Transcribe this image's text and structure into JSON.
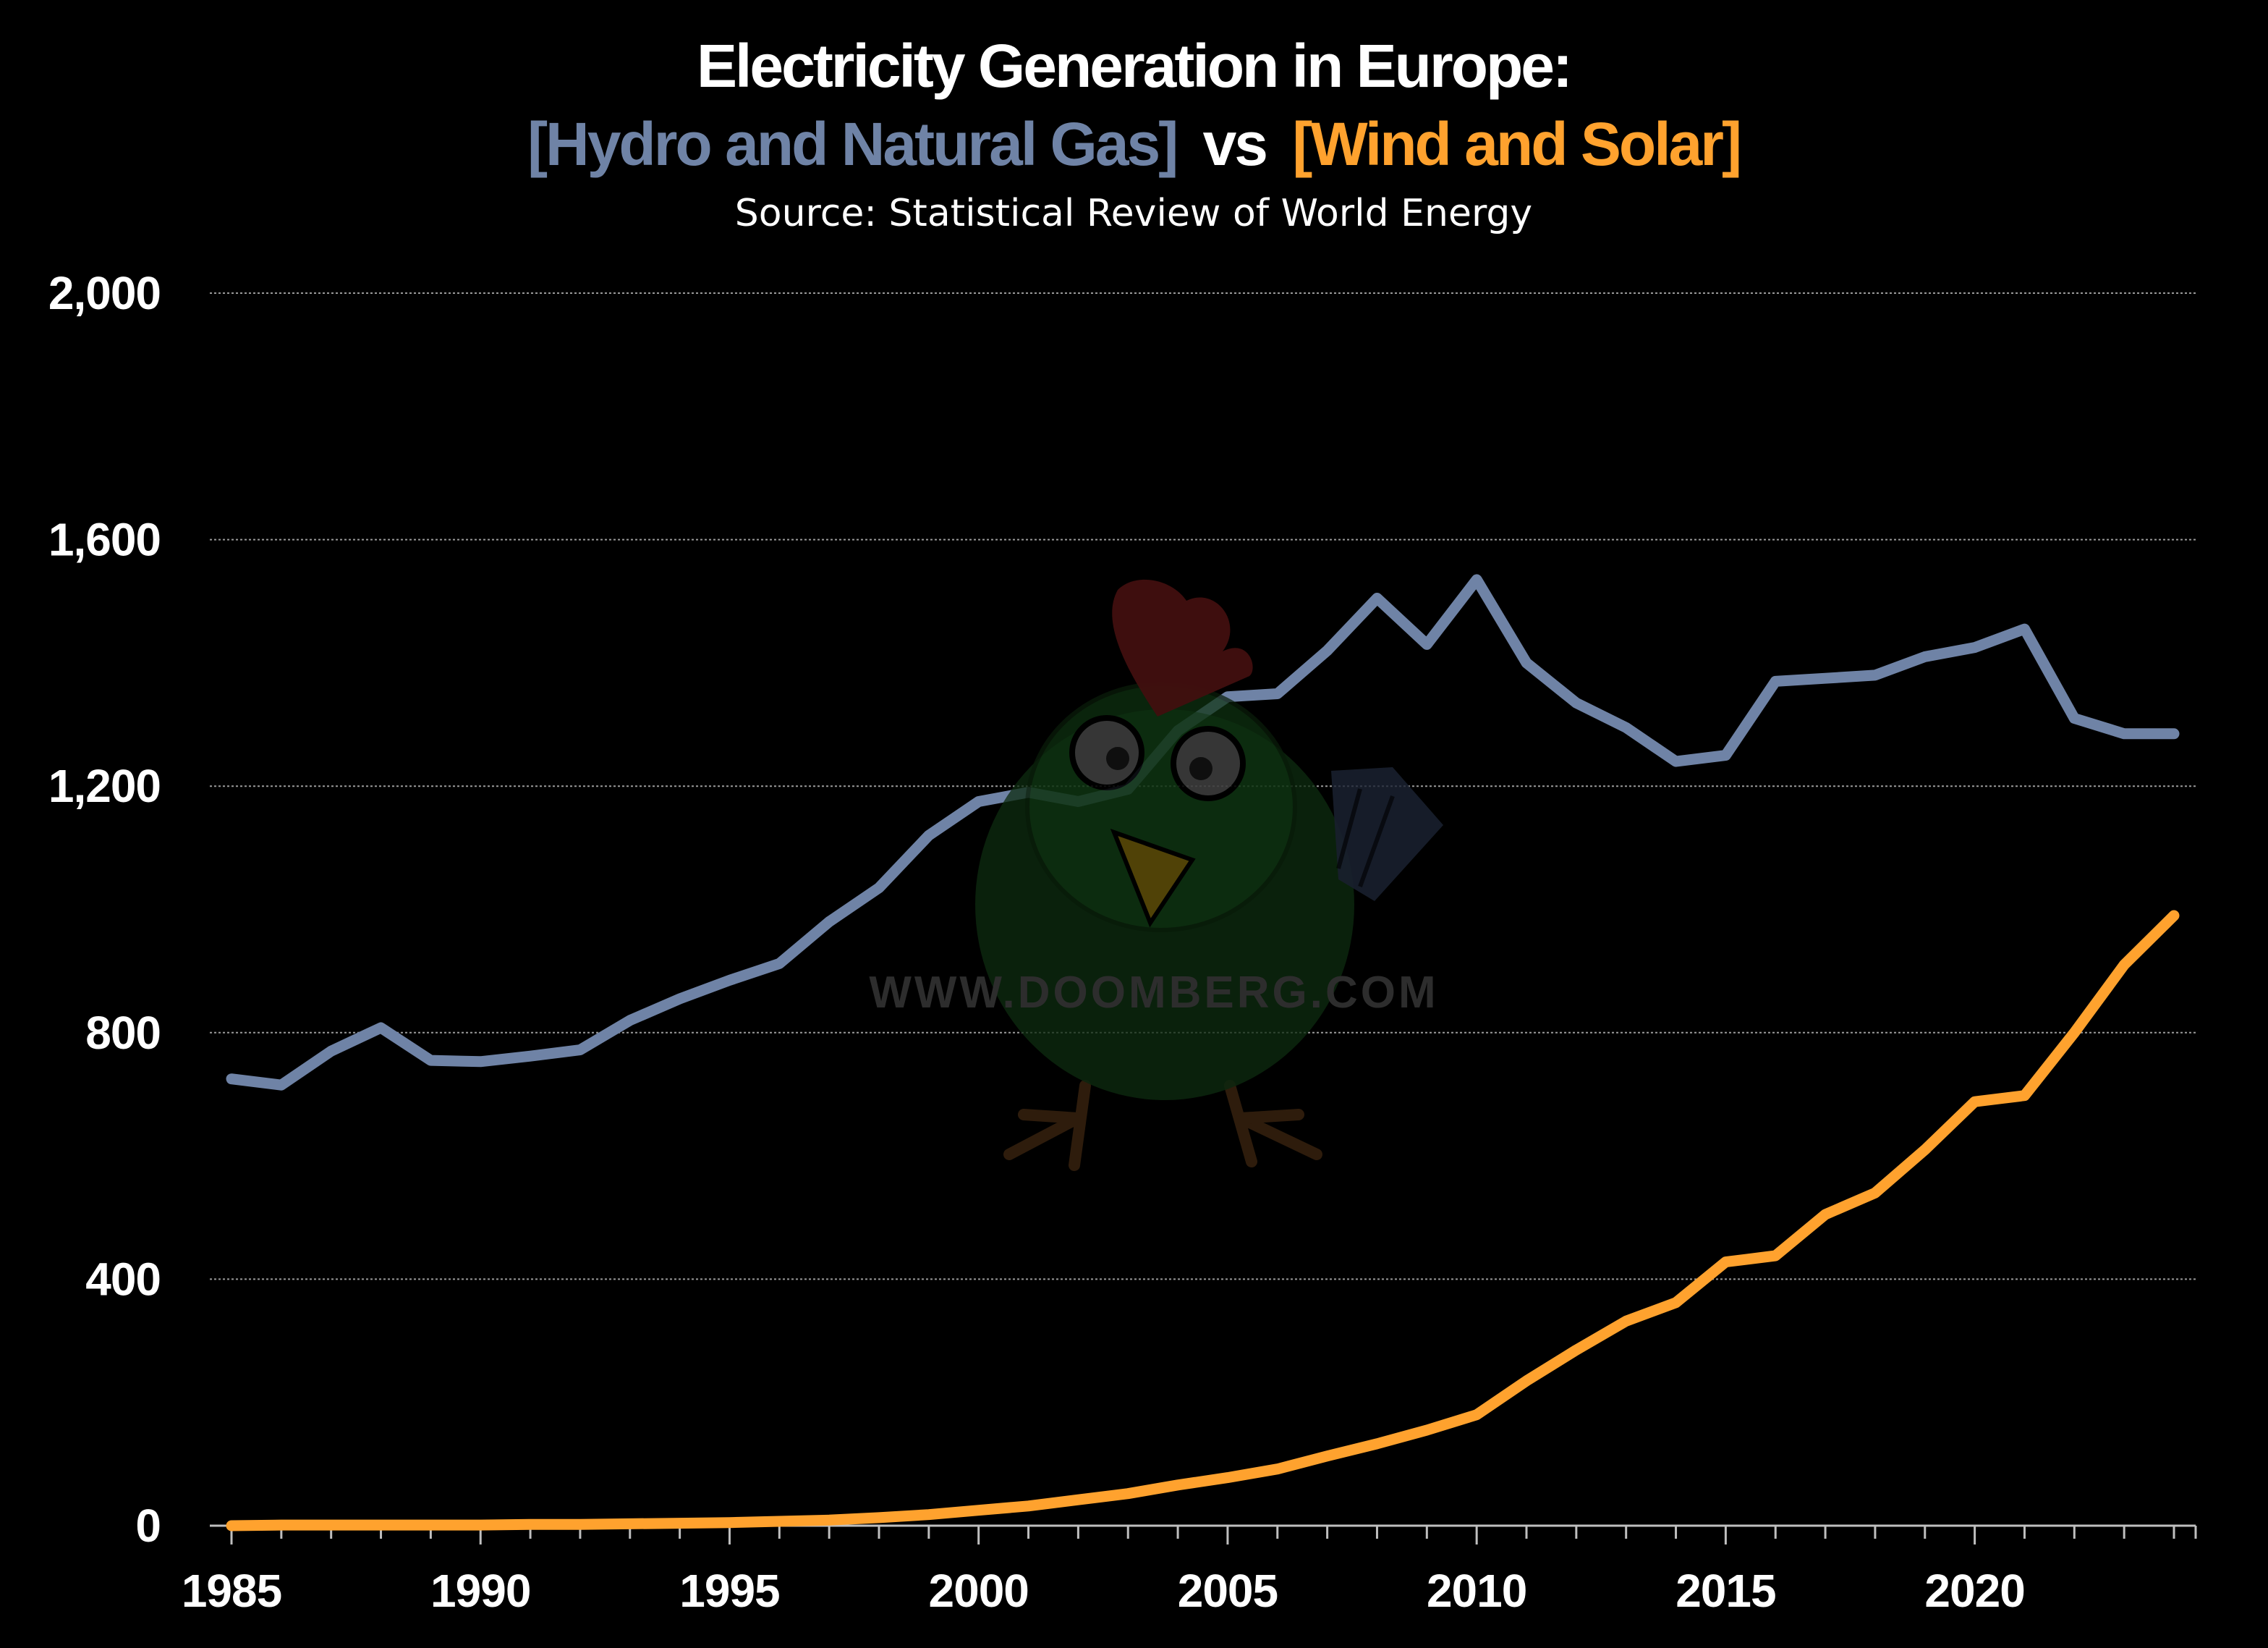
{
  "chart_data": {
    "type": "line",
    "title": "Electricity Generation in Europe:",
    "title_line2": {
      "part1": "[Hydro and Natural Gas]",
      "part2": "vs",
      "part3": "[Wind and Solar]"
    },
    "subtitle": "Source: Statistical Review of World Energy",
    "xlabel": "",
    "ylabel": "",
    "ylim": [
      0,
      2000
    ],
    "xlim": [
      1985,
      2024
    ],
    "y_ticks": [
      0,
      400,
      800,
      1200,
      1600,
      2000
    ],
    "y_tick_labels": [
      "0",
      "400",
      "800",
      "1,200",
      "1,600",
      "2,000"
    ],
    "x_ticks": [
      1985,
      1990,
      1995,
      2000,
      2005,
      2010,
      2015,
      2020
    ],
    "x_tick_labels": [
      "1985",
      "1990",
      "1995",
      "2000",
      "2005",
      "2010",
      "2015",
      "2020"
    ],
    "grid": true,
    "x": [
      1985,
      1986,
      1987,
      1988,
      1989,
      1990,
      1991,
      1992,
      1993,
      1994,
      1995,
      1996,
      1997,
      1998,
      1999,
      2000,
      2001,
      2002,
      2003,
      2004,
      2005,
      2006,
      2007,
      2008,
      2009,
      2010,
      2011,
      2012,
      2013,
      2014,
      2015,
      2016,
      2017,
      2018,
      2019,
      2020,
      2021,
      2022,
      2023,
      2024
    ],
    "series": [
      {
        "name": "Hydro and Natural Gas",
        "color": "#6F83A6",
        "values": [
          725,
          715,
          770,
          808,
          755,
          753,
          762,
          772,
          820,
          855,
          885,
          912,
          980,
          1035,
          1120,
          1175,
          1190,
          1175,
          1195,
          1290,
          1345,
          1350,
          1420,
          1505,
          1430,
          1535,
          1400,
          1335,
          1295,
          1240,
          1250,
          1370,
          1375,
          1380,
          1410,
          1425,
          1455,
          1310,
          1285,
          1285
        ]
      },
      {
        "name": "Wind and Solar",
        "color": "#FFA22E",
        "values": [
          0,
          1,
          1,
          1,
          1,
          1,
          2,
          2,
          3,
          4,
          5,
          7,
          9,
          13,
          18,
          25,
          32,
          42,
          52,
          66,
          78,
          92,
          113,
          133,
          155,
          180,
          235,
          285,
          332,
          362,
          428,
          438,
          505,
          540,
          610,
          688,
          698,
          800,
          910,
          990
        ]
      }
    ]
  },
  "watermark": {
    "text": "WWW.DOOMBERG.COM",
    "icon": "chicken-mascot-icon",
    "colors": {
      "body": "#0E2B10",
      "comb": "#4A1111",
      "beak": "#5A4A08",
      "wing": "#1C2433",
      "legs": "#3A2410",
      "eye": "#555555"
    }
  }
}
